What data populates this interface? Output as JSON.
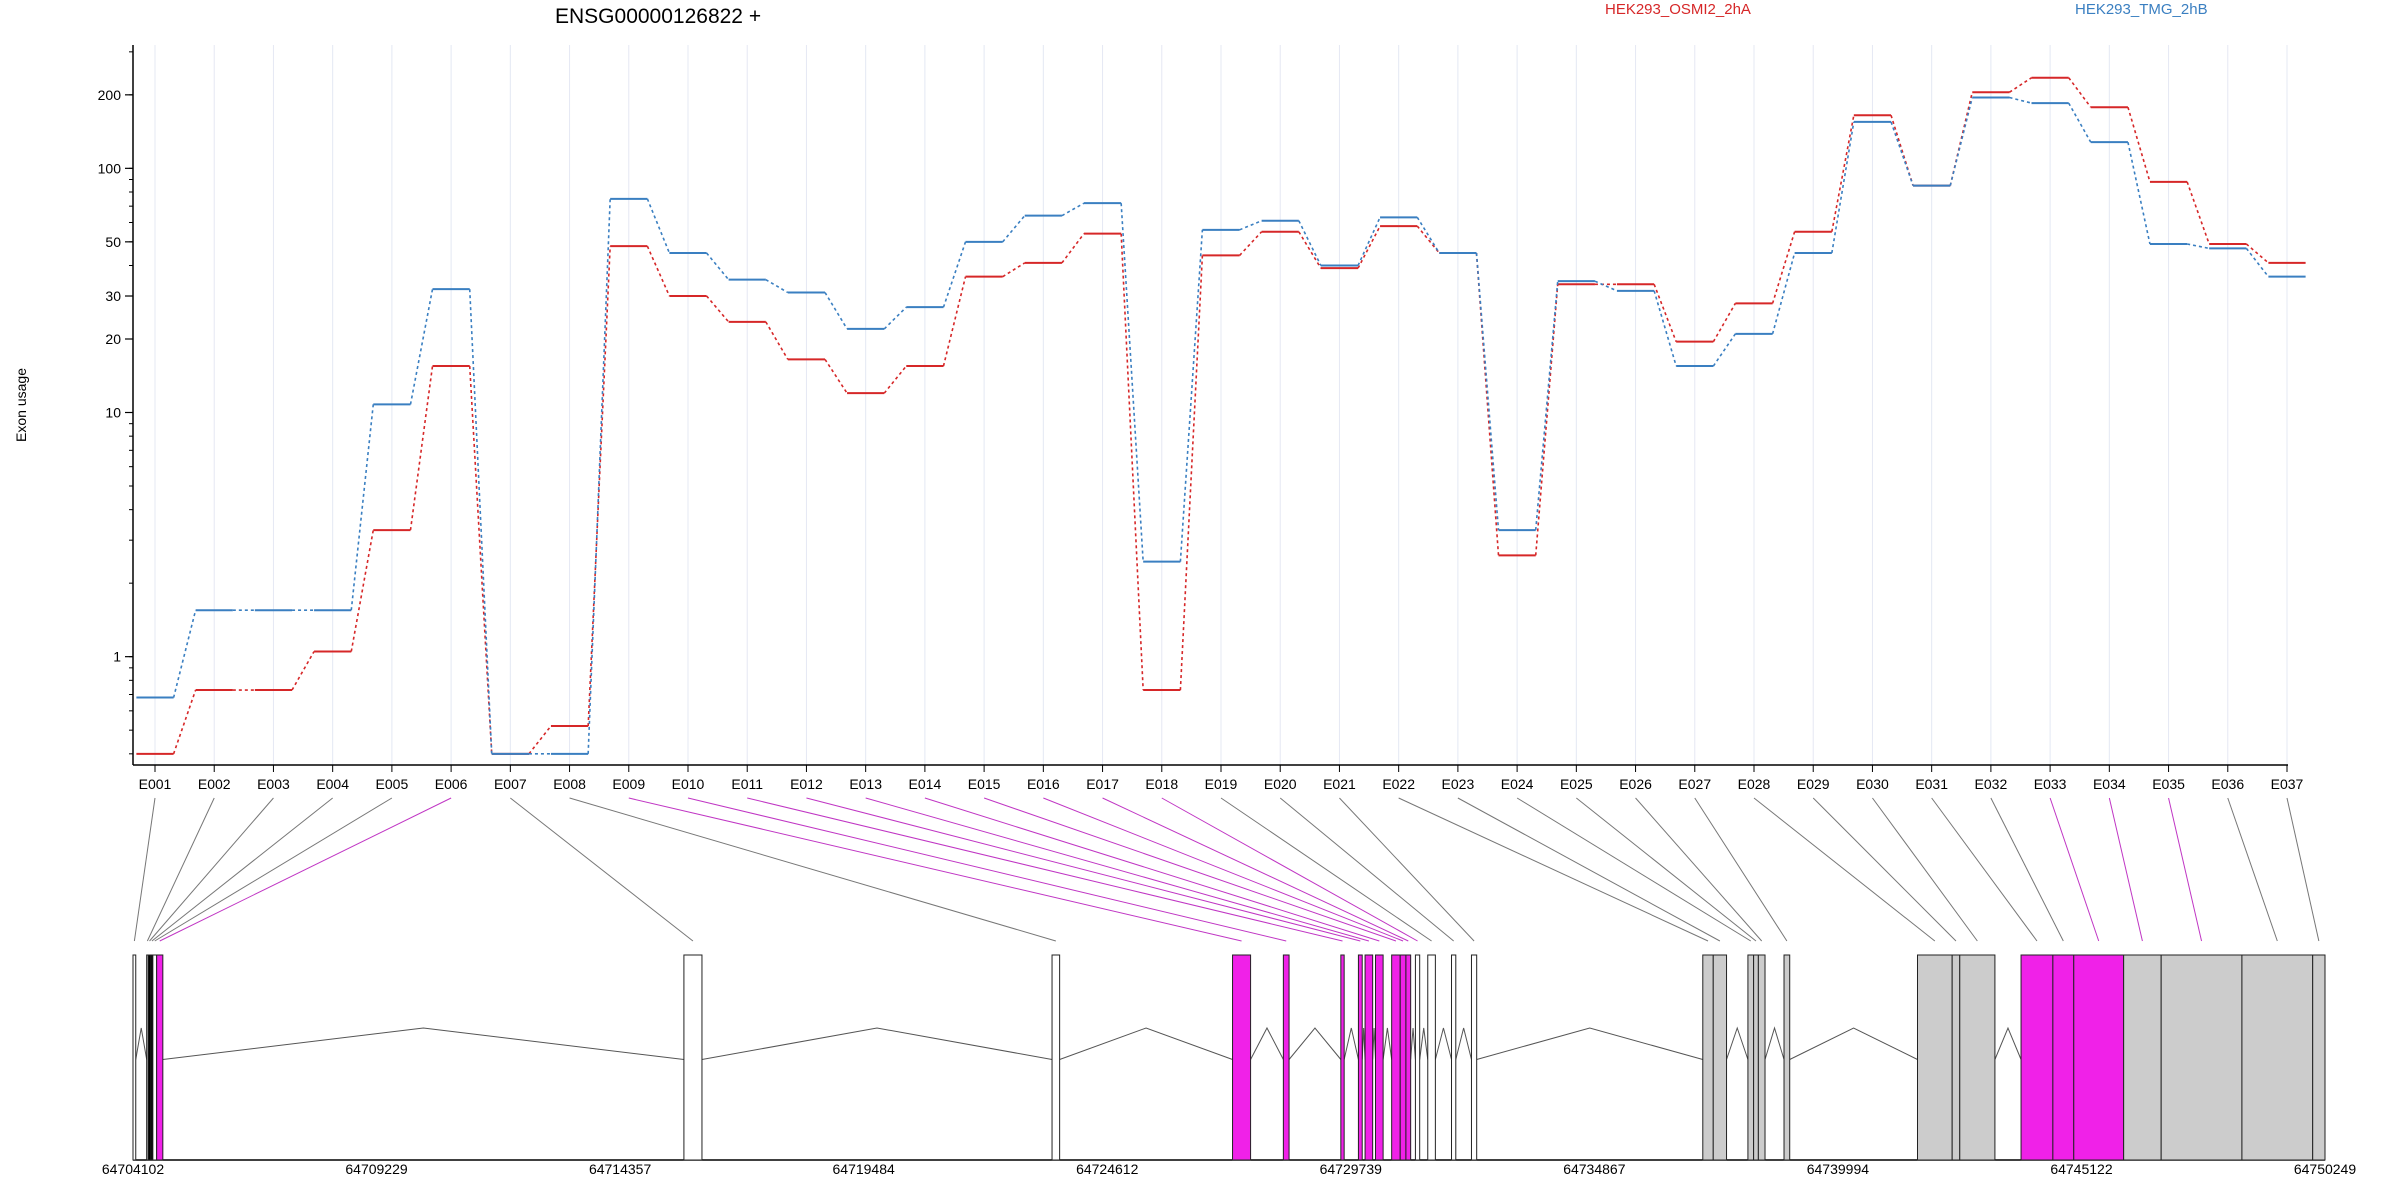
{
  "chart_data": {
    "type": "line",
    "title": "ENSG00000126822 +",
    "ylabel": "Exon usage",
    "yscale": "log",
    "ylim": [
      0.36,
      320
    ],
    "yticks": [
      1,
      10,
      20,
      30,
      50,
      100,
      200
    ],
    "grid": "vertical",
    "legend": [
      {
        "name": "HEK293_OSMI2_2hA",
        "color": "#d62728"
      },
      {
        "name": "HEK293_TMG_2hB",
        "color": "#3a7fc1"
      }
    ],
    "categories": [
      "E001",
      "E002",
      "E003",
      "E004",
      "E005",
      "E006",
      "E007",
      "E008",
      "E009",
      "E010",
      "E011",
      "E012",
      "E013",
      "E014",
      "E015",
      "E016",
      "E017",
      "E018",
      "E019",
      "E020",
      "E021",
      "E022",
      "E023",
      "E024",
      "E025",
      "E026",
      "E027",
      "E028",
      "E029",
      "E030",
      "E031",
      "E032",
      "E033",
      "E034",
      "E035",
      "E036",
      "E037"
    ],
    "series": [
      {
        "name": "HEK293_OSMI2_2hA",
        "color": "#d62728",
        "values": [
          0.4,
          0.73,
          0.73,
          1.05,
          3.3,
          15.5,
          0.4,
          0.52,
          48,
          30,
          23.5,
          16.5,
          12,
          15.5,
          36,
          41,
          54,
          0.73,
          44,
          55,
          39,
          58,
          45,
          2.6,
          33.5,
          33.5,
          19.5,
          28,
          55,
          165,
          85,
          205,
          235,
          178,
          88,
          49,
          41
        ]
      },
      {
        "name": "HEK293_TMG_2hB",
        "color": "#3a7fc1",
        "values": [
          0.68,
          1.55,
          1.55,
          1.55,
          10.8,
          32,
          0.4,
          0.4,
          75,
          45,
          35,
          31,
          22,
          27,
          50,
          64,
          72,
          2.45,
          56,
          61,
          40,
          63,
          45,
          3.3,
          34.5,
          31.5,
          15.5,
          21,
          45,
          155,
          85,
          195,
          185,
          128,
          49,
          47,
          36
        ]
      }
    ],
    "genomic_axis": {
      "ticks": [
        "64704102",
        "64709229",
        "64714357",
        "64719484",
        "64724612",
        "64729739",
        "64734867",
        "64739994",
        "64745122",
        "64750249"
      ],
      "start": 64704102,
      "end": 64750249
    },
    "exon_models": [
      {
        "exon": "E001",
        "start": 64704102,
        "end": 64704160,
        "color": "#ffffff"
      },
      {
        "exon": "E002",
        "start": 64704390,
        "end": 64704420,
        "color": "#ffffff"
      },
      {
        "exon": "E003",
        "start": 64704420,
        "end": 64704480,
        "color": "#000000"
      },
      {
        "exon": "E004",
        "start": 64704480,
        "end": 64704520,
        "color": "#000000"
      },
      {
        "exon": "E005",
        "start": 64704520,
        "end": 64704600,
        "color": "#ffffff"
      },
      {
        "exon": "E006",
        "start": 64704600,
        "end": 64704730,
        "color": "#f021e8"
      },
      {
        "exon": "E007",
        "start": 64715700,
        "end": 64716080,
        "color": "#ffffff"
      },
      {
        "exon": "E008",
        "start": 64723450,
        "end": 64723610,
        "color": "#ffffff"
      },
      {
        "exon": "E009",
        "start": 64727250,
        "end": 64727630,
        "color": "#f021e8"
      },
      {
        "exon": "E010",
        "start": 64728320,
        "end": 64728440,
        "color": "#f021e8"
      },
      {
        "exon": "E011",
        "start": 64729530,
        "end": 64729600,
        "color": "#f021e8"
      },
      {
        "exon": "E012",
        "start": 64729900,
        "end": 64729980,
        "color": "#f021e8"
      },
      {
        "exon": "E013",
        "start": 64730040,
        "end": 64730200,
        "color": "#f021e8"
      },
      {
        "exon": "E014",
        "start": 64730260,
        "end": 64730420,
        "color": "#f021e8"
      },
      {
        "exon": "E015",
        "start": 64730600,
        "end": 64730780,
        "color": "#f021e8"
      },
      {
        "exon": "E016",
        "start": 64730780,
        "end": 64730900,
        "color": "#f021e8"
      },
      {
        "exon": "E017",
        "start": 64730900,
        "end": 64731000,
        "color": "#f021e8"
      },
      {
        "exon": "E018",
        "start": 64731100,
        "end": 64731190,
        "color": "#ffffff"
      },
      {
        "exon": "E019",
        "start": 64731360,
        "end": 64731520,
        "color": "#ffffff"
      },
      {
        "exon": "E020",
        "start": 64731860,
        "end": 64731950,
        "color": "#ffffff"
      },
      {
        "exon": "E021",
        "start": 64732280,
        "end": 64732390,
        "color": "#ffffff"
      },
      {
        "exon": "E022",
        "start": 64737150,
        "end": 64737370,
        "color": "#cccccc"
      },
      {
        "exon": "E023",
        "start": 64737370,
        "end": 64737650,
        "color": "#cccccc"
      },
      {
        "exon": "E024",
        "start": 64738100,
        "end": 64738220,
        "color": "#cccccc"
      },
      {
        "exon": "E025",
        "start": 64738220,
        "end": 64738320,
        "color": "#cccccc"
      },
      {
        "exon": "E026",
        "start": 64738320,
        "end": 64738460,
        "color": "#cccccc"
      },
      {
        "exon": "E027",
        "start": 64738860,
        "end": 64738980,
        "color": "#cccccc"
      },
      {
        "exon": "E028",
        "start": 64741670,
        "end": 64742400,
        "color": "#cccccc"
      },
      {
        "exon": "E029",
        "start": 64742400,
        "end": 64742560,
        "color": "#cccccc"
      },
      {
        "exon": "E030",
        "start": 64742560,
        "end": 64743300,
        "color": "#cccccc"
      },
      {
        "exon": "E031",
        "start": 64743850,
        "end": 64744520,
        "color": "#f021e8"
      },
      {
        "exon": "E032",
        "start": 64744520,
        "end": 64744960,
        "color": "#f021e8"
      },
      {
        "exon": "E033",
        "start": 64744960,
        "end": 64746010,
        "color": "#f021e8"
      },
      {
        "exon": "E034",
        "start": 64746010,
        "end": 64746800,
        "color": "#cccccc"
      },
      {
        "exon": "E035",
        "start": 64746800,
        "end": 64748500,
        "color": "#cccccc"
      },
      {
        "exon": "E036",
        "start": 64748500,
        "end": 64749990,
        "color": "#cccccc"
      },
      {
        "exon": "E037",
        "start": 64749990,
        "end": 64750249,
        "color": "#cccccc"
      }
    ],
    "significant_exons": [
      "E006",
      "E009",
      "E010",
      "E011",
      "E012",
      "E013",
      "E014",
      "E015",
      "E016",
      "E017",
      "E018",
      "E033",
      "E034",
      "E035"
    ]
  }
}
